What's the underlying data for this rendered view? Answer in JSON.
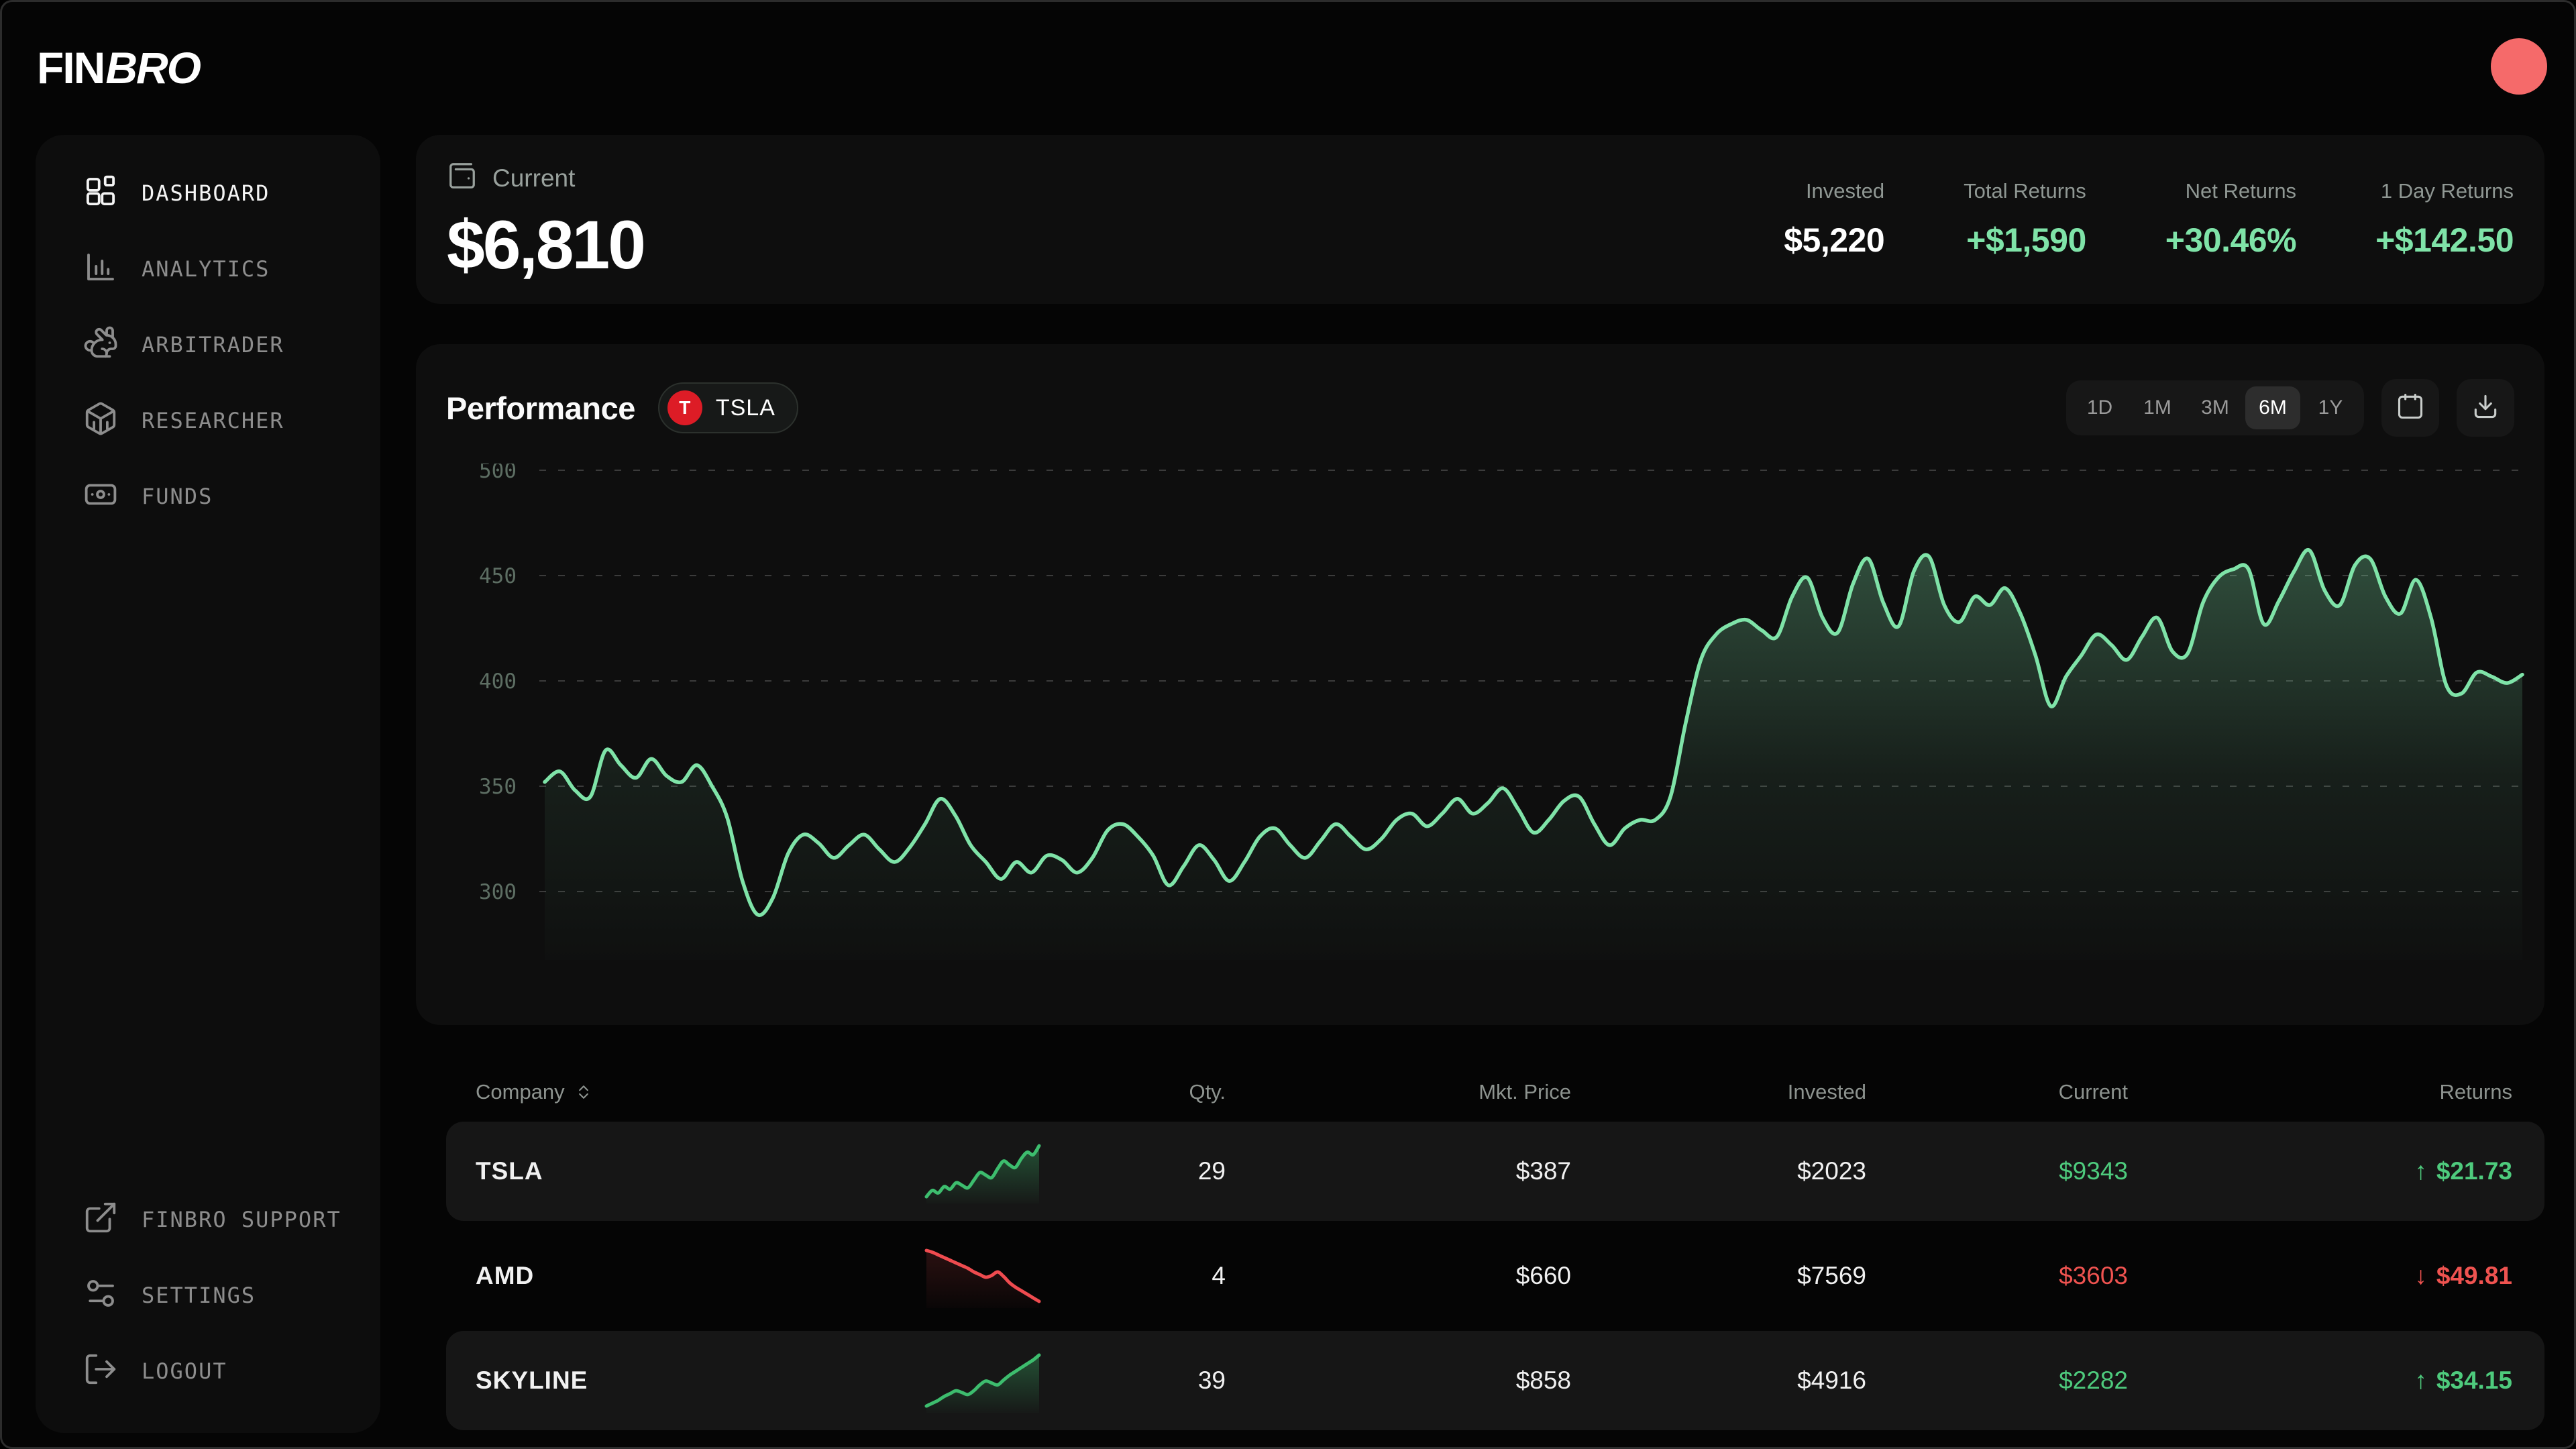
{
  "brand": {
    "logo_fin": "FIN",
    "logo_bro": "BRO"
  },
  "accents": {
    "green_text": "#7fe3a8",
    "table_green": "#4ecb7d",
    "table_red": "#ef5350",
    "avatar_red": "#f56a6a",
    "badge_red": "#dd1c26",
    "chart_line": "#7fe3a8",
    "spark_green": "#3dbd6e",
    "spark_red": "#ef4b4f"
  },
  "sidebar": {
    "items": [
      {
        "label": "DASHBOARD",
        "icon": "dashboard-grid-icon",
        "active": true
      },
      {
        "label": "ANALYTICS",
        "icon": "bar-chart-icon",
        "active": false
      },
      {
        "label": "ARBITRADER",
        "icon": "rabbit-icon",
        "active": false
      },
      {
        "label": "RESEARCHER",
        "icon": "cube-icon",
        "active": false
      },
      {
        "label": "FUNDS",
        "icon": "banknote-icon",
        "active": false
      }
    ],
    "footer_items": [
      {
        "label": "FINBRO SUPPORT",
        "icon": "external-link-icon"
      },
      {
        "label": "SETTINGS",
        "icon": "sliders-icon"
      },
      {
        "label": "LOGOUT",
        "icon": "logout-icon"
      }
    ]
  },
  "summary": {
    "label": "Current",
    "value": "$6,810",
    "stats": [
      {
        "label": "Invested",
        "value": "$5,220",
        "tone": "white"
      },
      {
        "label": "Total Returns",
        "value": "+$1,590",
        "tone": "green"
      },
      {
        "label": "Net Returns",
        "value": "+30.46%",
        "tone": "green"
      },
      {
        "label": "1 Day Returns",
        "value": "+$142.50",
        "tone": "green"
      }
    ]
  },
  "performance": {
    "title": "Performance",
    "ticker": {
      "initial": "T",
      "symbol": "TSLA"
    },
    "timeframes": [
      "1D",
      "1M",
      "3M",
      "6M",
      "1Y"
    ],
    "active_timeframe": "6M"
  },
  "chart_data": {
    "type": "area",
    "title": "Performance",
    "series_name": "TSLA",
    "xlabel": "",
    "ylabel": "",
    "x_labels_visible": false,
    "yticks": [
      500,
      450,
      400,
      350,
      300
    ],
    "ylim": [
      265,
      510
    ],
    "grid": true,
    "legend": false,
    "line_color": "#7fe3a8",
    "fill": "green-gradient",
    "values": [
      352,
      357,
      348,
      345,
      367,
      360,
      354,
      363,
      355,
      352,
      360,
      350,
      335,
      305,
      289,
      297,
      318,
      327,
      323,
      316,
      322,
      327,
      320,
      314,
      321,
      332,
      344,
      336,
      322,
      314,
      306,
      314,
      309,
      317,
      315,
      309,
      316,
      329,
      332,
      326,
      317,
      303,
      312,
      322,
      315,
      305,
      314,
      326,
      330,
      322,
      316,
      324,
      332,
      326,
      320,
      325,
      334,
      337,
      331,
      337,
      344,
      337,
      342,
      349,
      339,
      328,
      334,
      343,
      345,
      332,
      322,
      330,
      334,
      334,
      345,
      380,
      410,
      422,
      427,
      429,
      424,
      421,
      440,
      449,
      430,
      423,
      446,
      458,
      437,
      426,
      452,
      459,
      436,
      428,
      440,
      436,
      444,
      432,
      412,
      388,
      402,
      412,
      422,
      417,
      410,
      421,
      430,
      414,
      413,
      437,
      449,
      453,
      453,
      427,
      438,
      452,
      462,
      443,
      436,
      455,
      458,
      440,
      432,
      448,
      430,
      398,
      394,
      404,
      402,
      399,
      403
    ]
  },
  "table": {
    "headers": [
      {
        "label": "Company",
        "sortable": true
      },
      {
        "label": "Qty."
      },
      {
        "label": "Mkt. Price"
      },
      {
        "label": "Invested"
      },
      {
        "label": "Current"
      },
      {
        "label": "Returns"
      }
    ],
    "rows": [
      {
        "company": "TSLA",
        "direction": "up",
        "qty": "29",
        "mkt_price": "$387",
        "invested": "$2023",
        "current": "$9343",
        "arrow": "↑",
        "returns": "$21.73",
        "sparkline": [
          28,
          33,
          31,
          36,
          34,
          39,
          37,
          35,
          41,
          47,
          45,
          43,
          50,
          56,
          53,
          51,
          58,
          63,
          61,
          68
        ]
      },
      {
        "company": "AMD",
        "direction": "down",
        "qty": "4",
        "mkt_price": "$660",
        "invested": "$7569",
        "current": "$3603",
        "arrow": "↓",
        "returns": "$49.81",
        "sparkline": [
          86,
          84,
          81,
          78,
          75,
          72,
          69,
          66,
          62,
          59,
          56,
          58,
          62,
          57,
          50,
          45,
          41,
          37,
          33,
          29
        ]
      },
      {
        "company": "SKYLINE",
        "direction": "up",
        "qty": "39",
        "mkt_price": "$858",
        "invested": "$4916",
        "current": "$2282",
        "arrow": "↑",
        "returns": "$34.15",
        "sparkline": [
          30,
          33,
          36,
          40,
          43,
          46,
          44,
          42,
          46,
          52,
          56,
          54,
          52,
          57,
          62,
          66,
          70,
          74,
          78,
          83
        ]
      }
    ]
  }
}
